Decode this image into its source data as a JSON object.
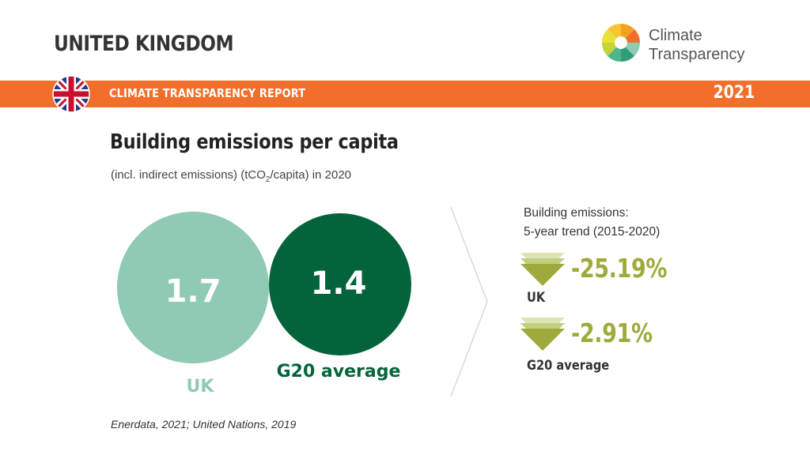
{
  "header": {
    "country": "UNITED KINGDOM",
    "logo_line1": "Climate",
    "logo_line2": "Transparency",
    "band_label": "CLIMATE TRANSPARENCY REPORT",
    "year": "2021"
  },
  "title": "Building emissions per capita",
  "subtitle_pre": "(incl. indirect emissions) (tCO",
  "subtitle_sub": "2",
  "subtitle_post": "/capita) in 2020",
  "comparison": {
    "uk": {
      "value": "1.7",
      "label": "UK",
      "color": "#8fcab2"
    },
    "g20": {
      "value": "1.4",
      "label": "G20 average",
      "color": "#03643b"
    }
  },
  "trend": {
    "title_line1": "Building emissions:",
    "title_line2": "5-year trend (2015-2020)",
    "uk": {
      "pct": "-25.19%",
      "label": "UK"
    },
    "g20": {
      "pct": "-2.91%",
      "label": "G20 average"
    },
    "accent": "#9eab3c"
  },
  "source": "Enerdata, 2021; United Nations, 2019",
  "colors": {
    "band": "#f26f2b"
  }
}
